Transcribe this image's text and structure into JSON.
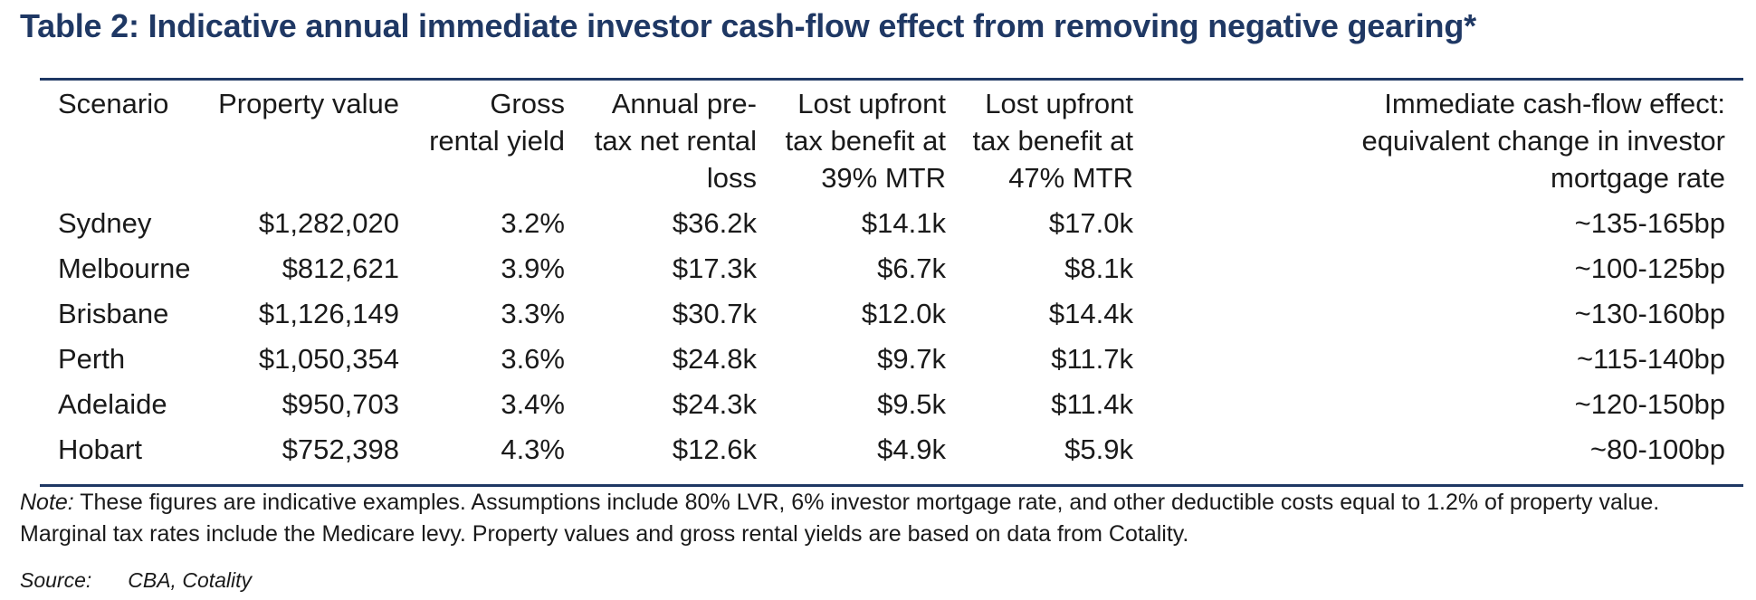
{
  "title": "Table 2: Indicative annual immediate investor cash-flow effect from removing negative gearing*",
  "table": {
    "headers": [
      "Scenario",
      "Property value",
      "Gross rental yield",
      "Annual pre-tax net rental loss",
      "Lost upfront tax benefit at 39% MTR",
      "Lost upfront tax benefit at 47% MTR",
      "Immediate cash-flow effect: equivalent change in investor mortgage rate"
    ],
    "rows": [
      [
        "Sydney",
        "$1,282,020",
        "3.2%",
        "$36.2k",
        "$14.1k",
        "$17.0k",
        "~135-165bp"
      ],
      [
        "Melbourne",
        "$812,621",
        "3.9%",
        "$17.3k",
        "$6.7k",
        "$8.1k",
        "~100-125bp"
      ],
      [
        "Brisbane",
        "$1,126,149",
        "3.3%",
        "$30.7k",
        "$12.0k",
        "$14.4k",
        "~130-160bp"
      ],
      [
        "Perth",
        "$1,050,354",
        "3.6%",
        "$24.8k",
        "$9.7k",
        "$11.7k",
        "~115-140bp"
      ],
      [
        "Adelaide",
        "$950,703",
        "3.4%",
        "$24.3k",
        "$9.5k",
        "$11.4k",
        "~120-150bp"
      ],
      [
        "Hobart",
        "$752,398",
        "4.3%",
        "$12.6k",
        "$4.9k",
        "$5.9k",
        "~80-100bp"
      ]
    ]
  },
  "note": {
    "label": "Note:",
    "text": " These figures are indicative examples. Assumptions include 80% LVR, 6% investor mortgage rate, and other deductible costs equal to 1.2% of property value. Marginal tax rates include the Medicare levy. Property values and gross rental yields are based on data from Cotality."
  },
  "source": {
    "label": "Source:",
    "value": "CBA, Cotality"
  }
}
